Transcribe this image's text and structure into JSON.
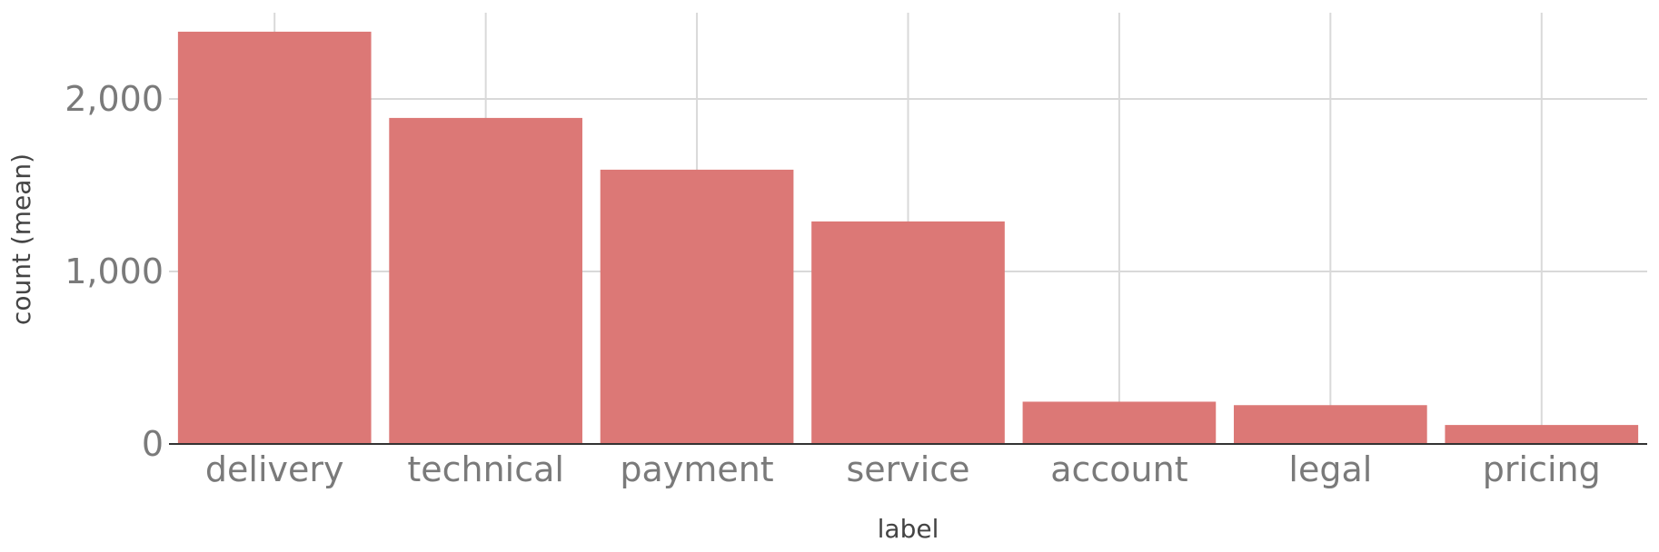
{
  "chart_data": {
    "type": "bar",
    "categories": [
      "delivery",
      "technical",
      "payment",
      "service",
      "account",
      "legal",
      "pricing"
    ],
    "values": [
      2390,
      1890,
      1590,
      1290,
      245,
      225,
      110
    ],
    "xlabel": "label",
    "ylabel": "count (mean)",
    "ylim": [
      0,
      2500
    ],
    "yticks": [
      0,
      1000,
      2000
    ],
    "ytick_labels": [
      "0",
      "1,000",
      "2,000"
    ],
    "grid": true,
    "bar_color": "#dc7876"
  }
}
